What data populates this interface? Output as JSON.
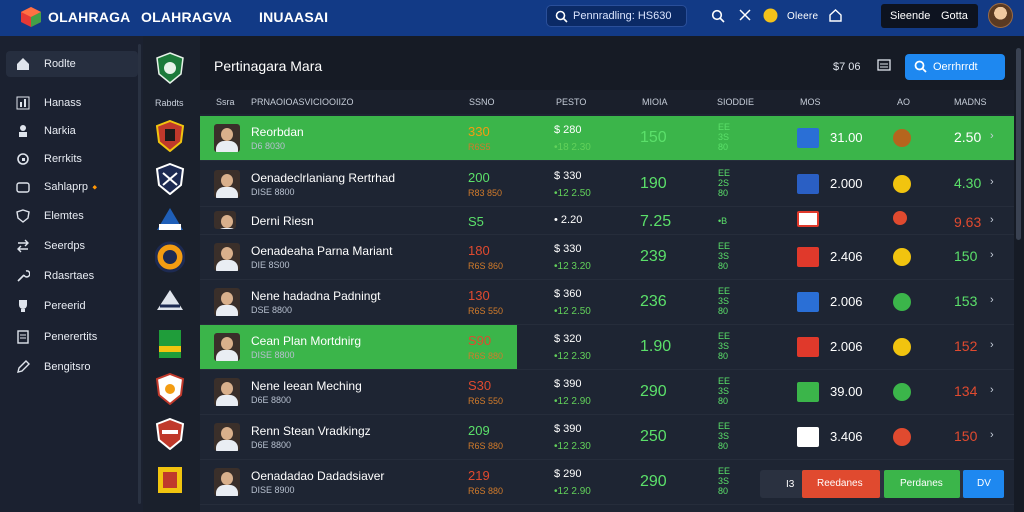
{
  "header": {
    "brand_primary": "OLAHRAGA",
    "brand_secondary": "OLAHRAGVA",
    "brand_tertiary": "INUAASAI",
    "search_text": "Pennradling: HS630",
    "notification_label": "Oleere",
    "account_name": "Sieende",
    "account_balance": "Gotta"
  },
  "sidebar": {
    "items": [
      {
        "label": "Rodlte",
        "icon": "home-icon"
      },
      {
        "label": "Hanass",
        "icon": "chart-icon"
      },
      {
        "label": "Narkia",
        "icon": "user-icon"
      },
      {
        "label": "Rerrkits",
        "icon": "refresh-icon"
      },
      {
        "label": "Sahlaprp",
        "icon": "coin-icon",
        "badge": "🔸"
      },
      {
        "label": "Elemtes",
        "icon": "shield-icon"
      },
      {
        "label": "Seerdps",
        "icon": "swap-icon"
      },
      {
        "label": "Rdasrtaes",
        "icon": "wrench-icon"
      },
      {
        "label": "Pereerid",
        "icon": "trophy-icon"
      },
      {
        "label": "Penerertits",
        "icon": "document-icon"
      },
      {
        "label": "Bengitsro",
        "icon": "edit-icon"
      }
    ]
  },
  "logos_column": {
    "header": "Rabdts"
  },
  "panel": {
    "title": "Pertinagara Mara",
    "price": "$7 06",
    "button_label": "Oerrhrrdt",
    "columns": [
      "Ssra",
      "PRNAOIOASVICIOOIIZO",
      "SSNO",
      "PESTO",
      "MIOIA",
      "SIODDIE",
      "MOS",
      "AO",
      "MADNS"
    ]
  },
  "rows": [
    {
      "name": "Reorbdan",
      "sub": "D6 8030",
      "score": "330",
      "score2": "R6S5",
      "line1": "$ 280",
      "line2": "•18 2.30",
      "big": "150",
      "tiny": [
        "EE",
        "3S",
        "80"
      ],
      "odds": "31.00",
      "rval": "2.50",
      "highlight": 1.0
    },
    {
      "name": "Oenadeclrlaniang Rertrhad",
      "sub": "DISE 8800",
      "score": "200",
      "score2": "R83 850",
      "line1": "$ 330",
      "line2": "•12 2.50",
      "big": "190",
      "tiny": [
        "EE",
        "2S",
        "80"
      ],
      "odds": "2.000",
      "rval": "4.30",
      "highlight": 0
    },
    {
      "name": "Derni Riesn",
      "sub": "",
      "score": "S5",
      "score2": "",
      "line1": "• 2.20",
      "line2": "",
      "big": "7.25",
      "tiny": [
        "•B"
      ],
      "odds": "",
      "rval": "9.63",
      "highlight": 0
    },
    {
      "name": "Oenadeaha Parna Mariant",
      "sub": "DIE 8S00",
      "score": "180",
      "score2": "R6S 860",
      "line1": "$ 330",
      "line2": "•12 3.20",
      "big": "239",
      "tiny": [
        "EE",
        "3S",
        "80"
      ],
      "odds": "2.406",
      "rval": "150",
      "highlight": 0
    },
    {
      "name": "Nene hadadna Padningt",
      "sub": "DSE 8800",
      "score": "130",
      "score2": "R6S 550",
      "line1": "$ 360",
      "line2": "•12 2.50",
      "big": "236",
      "tiny": [
        "EE",
        "3S",
        "80"
      ],
      "odds": "2.006",
      "rval": "153",
      "highlight": 0
    },
    {
      "name": "Cean Plan Mortdnirg",
      "sub": "DISE 8800",
      "score": "S90",
      "score2": "R6S 880",
      "line1": "$ 320",
      "line2": "•12 2.30",
      "big": "1.90",
      "tiny": [
        "EE",
        "3S",
        "80"
      ],
      "odds": "2.006",
      "rval": "152",
      "highlight": 0.39
    },
    {
      "name": "Nene Ieean Meching",
      "sub": "D6E 8800",
      "score": "S30",
      "score2": "R6S 550",
      "line1": "$ 390",
      "line2": "•12 2.90",
      "big": "290",
      "tiny": [
        "EE",
        "3S",
        "80"
      ],
      "odds": "39.00",
      "rval": "134",
      "highlight": 0
    },
    {
      "name": "Renn Stean Vradkingz",
      "sub": "D6E 8800",
      "score": "209",
      "score2": "R6S 880",
      "line1": "$ 390",
      "line2": "•12 2.30",
      "big": "250",
      "tiny": [
        "EE",
        "3S",
        "80"
      ],
      "odds": "3.406",
      "rval": "150",
      "highlight": 0
    },
    {
      "name": "Oenadadao Dadadsiaver",
      "sub": "DISE 8900",
      "score": "219",
      "score2": "R6S 880",
      "line1": "$ 290",
      "line2": "•12 2.90",
      "big": "290",
      "tiny": [
        "EE",
        "3S",
        "80"
      ],
      "odds": "",
      "rval": "",
      "highlight": 0
    }
  ],
  "footer": {
    "left": "I3",
    "btn_red": "Reedanes",
    "btn_green": "Perdanes",
    "btn_blue": "DV"
  },
  "colors": {
    "accent": "#1e88f0",
    "green": "#3bb54a",
    "red": "#e04a2f",
    "header": "#123a86"
  }
}
